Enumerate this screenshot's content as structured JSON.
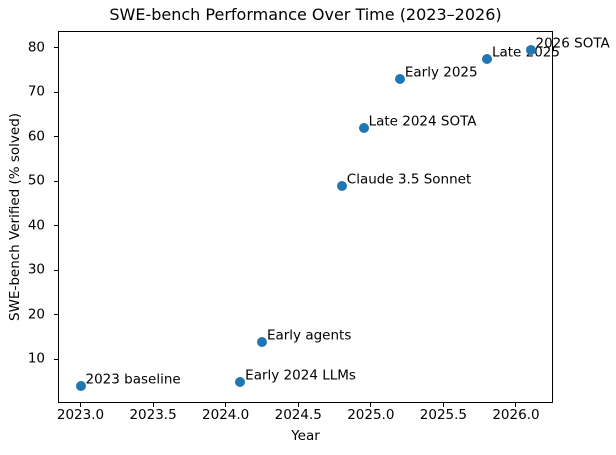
{
  "chart_data": {
    "type": "scatter",
    "title": "SWE-bench Performance Over Time (2023–2026)",
    "xlabel": "Year",
    "ylabel": "SWE-bench Verified (% solved)",
    "xlim": [
      2022.845,
      2026.255
    ],
    "ylim": [
      0.2,
      83.8
    ],
    "grid": false,
    "legend": "none",
    "xticks": [
      {
        "v": 2023.0,
        "label": "2023.0"
      },
      {
        "v": 2023.5,
        "label": "2023.5"
      },
      {
        "v": 2024.0,
        "label": "2024.0"
      },
      {
        "v": 2024.5,
        "label": "2024.5"
      },
      {
        "v": 2025.0,
        "label": "2025.0"
      },
      {
        "v": 2025.5,
        "label": "2025.5"
      },
      {
        "v": 2026.0,
        "label": "2026.0"
      }
    ],
    "yticks": [
      {
        "v": 10,
        "label": "10"
      },
      {
        "v": 20,
        "label": "20"
      },
      {
        "v": 30,
        "label": "30"
      },
      {
        "v": 40,
        "label": "40"
      },
      {
        "v": 50,
        "label": "50"
      },
      {
        "v": 60,
        "label": "60"
      },
      {
        "v": 70,
        "label": "70"
      },
      {
        "v": 80,
        "label": "80"
      }
    ],
    "points": [
      {
        "x": 2023.0,
        "y": 4.0,
        "label": "2023 baseline"
      },
      {
        "x": 2024.1,
        "y": 5.0,
        "label": "Early 2024 LLMs"
      },
      {
        "x": 2024.25,
        "y": 14.0,
        "label": "Early agents"
      },
      {
        "x": 2024.8,
        "y": 49.0,
        "label": "Claude 3.5 Sonnet"
      },
      {
        "x": 2024.95,
        "y": 62.0,
        "label": "Late 2024 SOTA"
      },
      {
        "x": 2025.2,
        "y": 73.0,
        "label": "Early 2025"
      },
      {
        "x": 2025.8,
        "y": 77.5,
        "label": "Late 2025"
      },
      {
        "x": 2026.1,
        "y": 79.5,
        "label": "2026 SOTA"
      }
    ],
    "colors": {
      "marker": "#1f77b4",
      "spine": "#000000",
      "text": "#000000",
      "background": "#ffffff"
    }
  }
}
